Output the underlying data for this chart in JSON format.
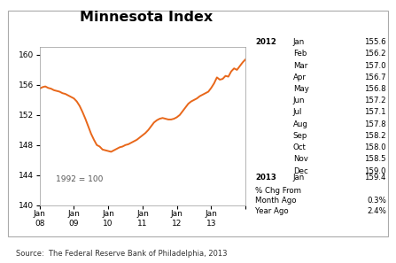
{
  "title": "Minnesota Index",
  "source": "Source:  The Federal Reserve Bank of Philadelphia, 2013",
  "annotation": "1992 = 100",
  "line_color": "#E8671A",
  "background_color": "#ffffff",
  "ylim": [
    140,
    161
  ],
  "yticks": [
    140,
    144,
    148,
    152,
    156,
    160
  ],
  "xlabel_years": [
    "08",
    "09",
    "10",
    "11",
    "12",
    "13"
  ],
  "data": [
    155.5,
    155.7,
    155.8,
    155.6,
    155.5,
    155.3,
    155.2,
    155.1,
    154.9,
    154.8,
    154.6,
    154.4,
    154.2,
    153.8,
    153.2,
    152.4,
    151.5,
    150.5,
    149.5,
    148.7,
    148.0,
    147.8,
    147.4,
    147.3,
    147.2,
    147.1,
    147.3,
    147.5,
    147.7,
    147.8,
    148.0,
    148.1,
    148.3,
    148.5,
    148.7,
    149.0,
    149.3,
    149.6,
    150.0,
    150.5,
    151.0,
    151.3,
    151.5,
    151.6,
    151.5,
    151.4,
    151.4,
    151.5,
    151.7,
    152.0,
    152.5,
    153.0,
    153.5,
    153.8,
    154.0,
    154.2,
    154.5,
    154.7,
    154.9,
    155.1,
    155.6,
    156.2,
    157.0,
    156.7,
    156.8,
    157.2,
    157.1,
    157.8,
    158.2,
    158.0,
    158.5,
    159.0,
    159.4
  ],
  "table_year": "2012",
  "table_months": [
    "Jan",
    "Feb",
    "Mar",
    "Apr",
    "May",
    "Jun",
    "Jul",
    "Aug",
    "Sep",
    "Oct",
    "Nov",
    "Dec"
  ],
  "table_values": [
    155.6,
    156.2,
    157.0,
    156.7,
    156.8,
    157.2,
    157.1,
    157.8,
    158.2,
    158.0,
    158.5,
    159.0
  ],
  "table_year2": "2013",
  "table_month2": "Jan",
  "table_value2": 159.4,
  "pct_chg_label": "% Chg From",
  "month_ago_label": "Month Ago",
  "month_ago_val": "0.3%",
  "year_ago_label": "Year Ago",
  "year_ago_val": "2.4%"
}
